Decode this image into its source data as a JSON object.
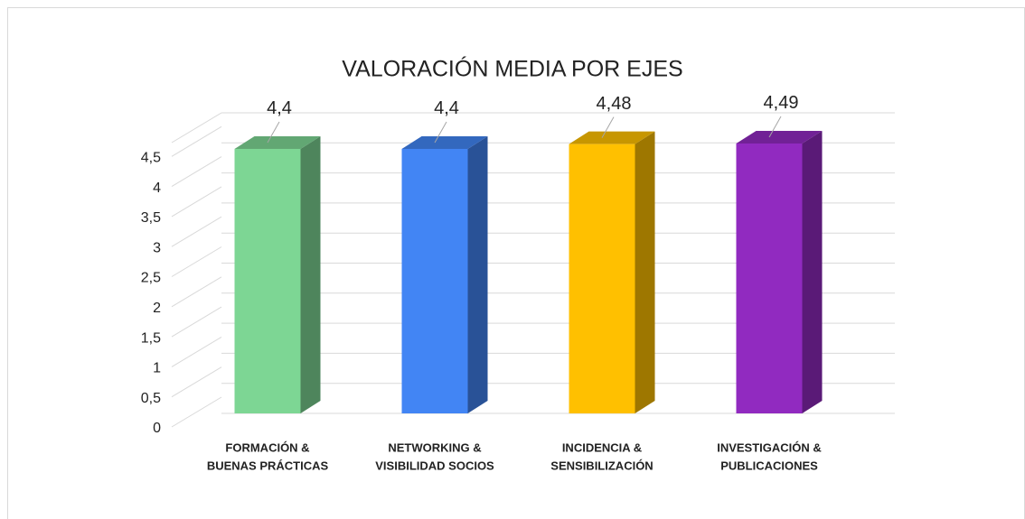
{
  "chart_data": {
    "type": "bar3d",
    "title": "VALORACIÓN MEDIA POR EJES",
    "categories": [
      [
        "FORMACIÓN &",
        "BUENAS PRÁCTICAS"
      ],
      [
        "NETWORKING &",
        "VISIBILIDAD SOCIOS"
      ],
      [
        "INCIDENCIA &",
        "SENSIBILIZACIÓN"
      ],
      [
        "INVESTIGACIÓN &",
        "PUBLICACIONES"
      ]
    ],
    "values": [
      4.4,
      4.4,
      4.48,
      4.49
    ],
    "value_labels": [
      "4,4",
      "4,4",
      "4,48",
      "4,49"
    ],
    "colors": [
      "#7dd694",
      "#4285f4",
      "#ffc000",
      "#912ac0"
    ],
    "ylim": [
      0,
      5
    ],
    "yticks": [
      0,
      {
        "value": 0.5,
        "label": "0,5"
      },
      1,
      {
        "value": 1.5,
        "label": "1,5"
      },
      2,
      {
        "value": 2.5,
        "label": "2,5"
      },
      3,
      {
        "value": 3.5,
        "label": "3,5"
      },
      4,
      {
        "value": 4.5,
        "label": "4,5"
      }
    ],
    "grid": true
  }
}
